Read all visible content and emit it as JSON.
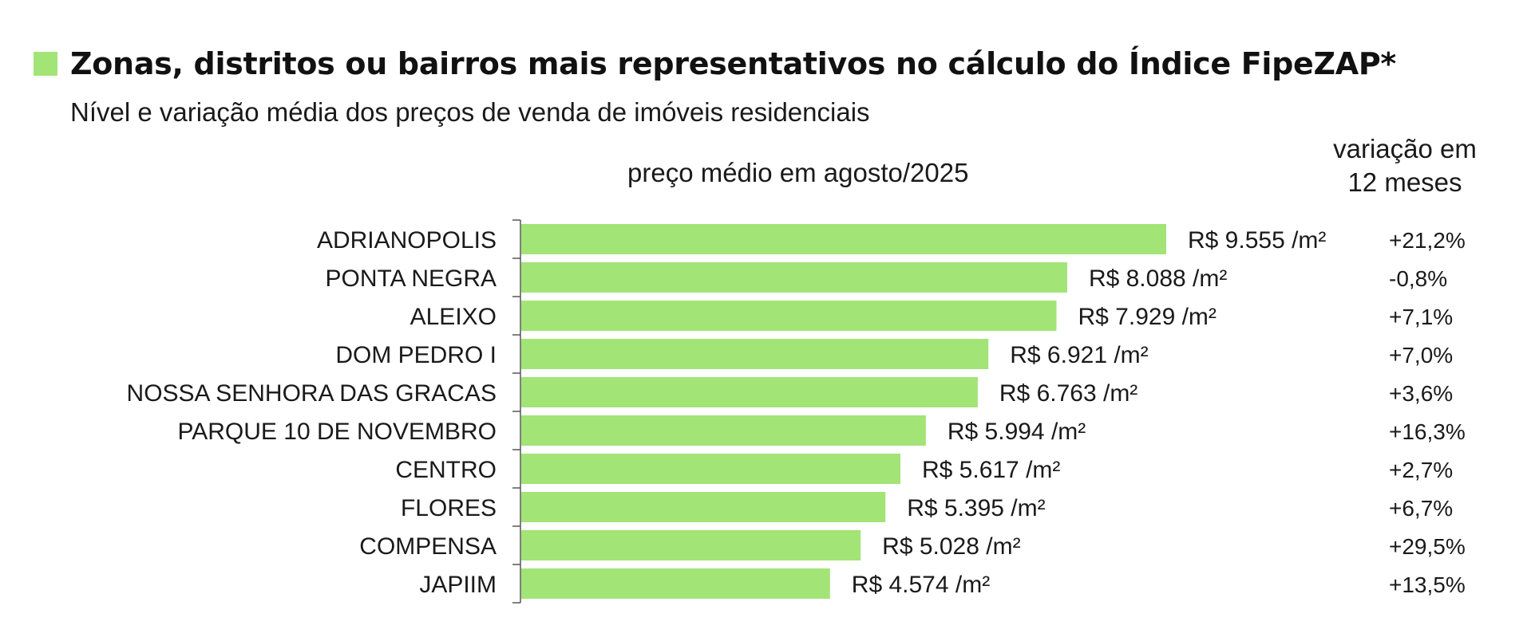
{
  "header": {
    "title": "Zonas, distritos ou bairros mais representativos no cálculo do Índice FipeZAP*",
    "subtitle": "Nível e variação média dos preços de venda de imóveis residenciais",
    "price_column": "preço médio em agosto/2025",
    "variation_column_line1": "variação em",
    "variation_column_line2": "12 meses"
  },
  "colors": {
    "bar": "#a2e475",
    "accent_square": "#a2e475",
    "axis": "#555555"
  },
  "chart_data": {
    "type": "bar",
    "orientation": "horizontal",
    "categories": [
      "ADRIANOPOLIS",
      "PONTA NEGRA",
      "ALEIXO",
      "DOM PEDRO I",
      "NOSSA SENHORA DAS GRACAS",
      "PARQUE 10 DE NOVEMBRO",
      "CENTRO",
      "FLORES",
      "COMPENSA",
      "JAPIIM"
    ],
    "values": [
      9555,
      8088,
      7929,
      6921,
      6763,
      5994,
      5617,
      5395,
      5028,
      4574
    ],
    "value_labels": [
      "R$ 9.555 /m²",
      "R$ 8.088 /m²",
      "R$ 7.929 /m²",
      "R$ 6.921 /m²",
      "R$ 6.763 /m²",
      "R$ 5.994 /m²",
      "R$ 5.617 /m²",
      "R$ 5.395 /m²",
      "R$ 5.028 /m²",
      "R$ 4.574 /m²"
    ],
    "variation_12m": [
      "+21,2%",
      "-0,8%",
      "+7,1%",
      "+7,0%",
      "+3,6%",
      "+16,3%",
      "+2,7%",
      "+6,7%",
      "+29,5%",
      "+13,5%"
    ],
    "xlim": [
      0,
      9555
    ],
    "grid": false,
    "legend": "none"
  }
}
